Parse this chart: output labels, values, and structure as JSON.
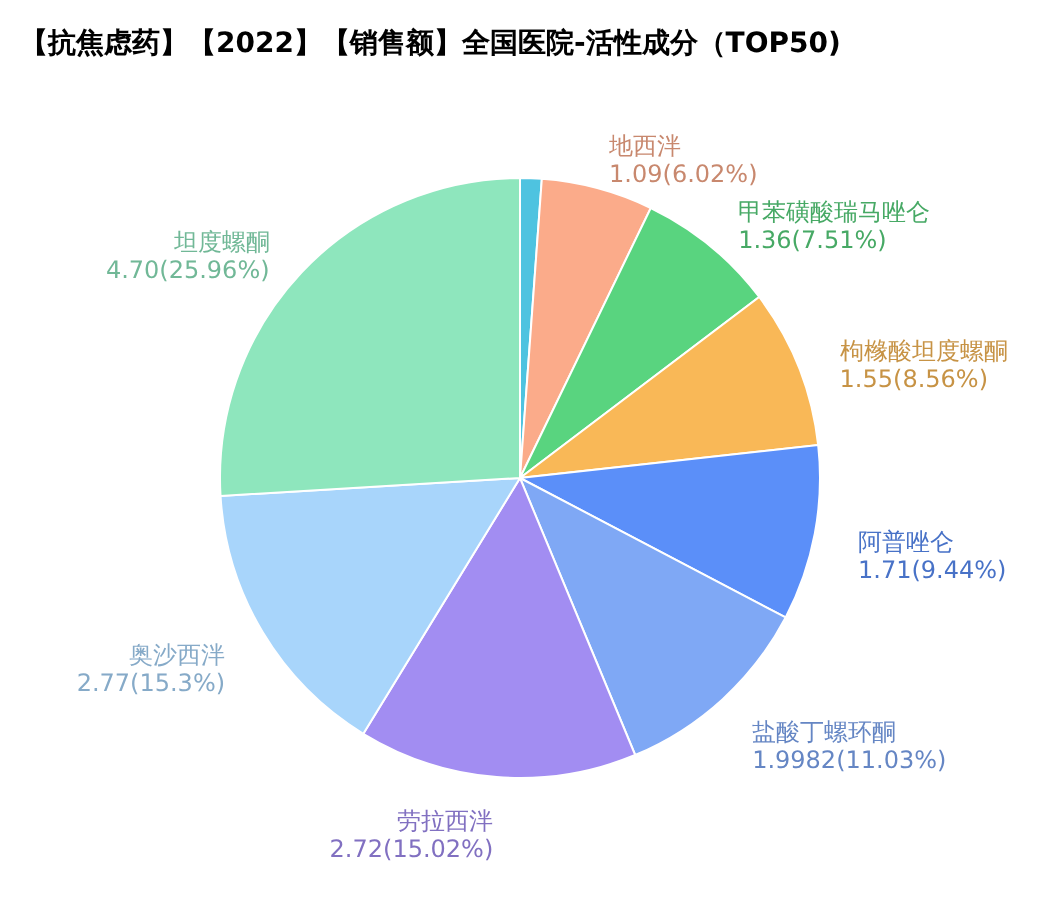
{
  "chart_data": {
    "type": "pie",
    "title": "【抗焦虑药】【2022】【销售额】全国医院-活性成分（TOP50)",
    "categories": [
      null,
      "地西泮",
      "甲苯磺酸瑞马唑仑",
      "枸橼酸坦度螺酮",
      "阿普唑仑",
      "盐酸丁螺环酮",
      "劳拉西泮",
      "奥沙西泮",
      "坦度螺酮"
    ],
    "values": [
      0.21,
      1.09,
      1.36,
      1.55,
      1.71,
      1.9982,
      2.72,
      2.77,
      4.7
    ],
    "value_labels": [
      null,
      "1.09(6.02%)",
      "1.36(7.51%)",
      "1.55(8.56%)",
      "1.71(9.44%)",
      "1.9982(11.03%)",
      "2.72(15.02%)",
      "2.77(15.3%)",
      "4.70(25.96%)"
    ],
    "colors": [
      "#4ec3e0",
      "#fbab8a",
      "#59d47f",
      "#f9b857",
      "#5b8ff9",
      "#7fa8f5",
      "#a28df2",
      "#a8d5fb",
      "#8ee6bd"
    ],
    "legend": false
  }
}
